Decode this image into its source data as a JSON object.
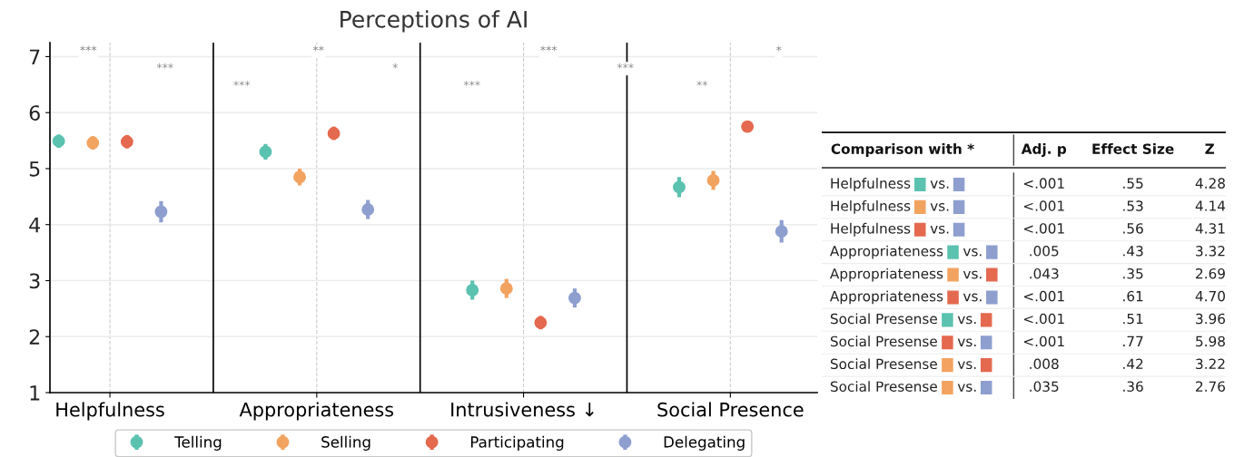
{
  "chart_data": [
    {
      "type": "scatter",
      "title": "Perceptions of AI",
      "categories": [
        "Helpfulness",
        "Appropriateness",
        "Intrusiveness ↓",
        "Social Presence"
      ],
      "series": [
        {
          "name": "Telling",
          "color": "#5bc2b0",
          "values": [
            5.49,
            5.3,
            2.83,
            4.67
          ],
          "errors": [
            0.12,
            0.14,
            0.17,
            0.18
          ]
        },
        {
          "name": "Selling",
          "color": "#f2a360",
          "values": [
            5.46,
            4.85,
            2.86,
            4.79
          ],
          "errors": [
            0.12,
            0.15,
            0.17,
            0.17
          ]
        },
        {
          "name": "Participating",
          "color": "#e4694f",
          "values": [
            5.48,
            5.63,
            2.25,
            5.75
          ],
          "errors": [
            0.12,
            0.12,
            0.12,
            0.08
          ]
        },
        {
          "name": "Delegating",
          "color": "#8e9fcf",
          "values": [
            4.23,
            4.27,
            2.69,
            3.88
          ],
          "errors": [
            0.19,
            0.17,
            0.17,
            0.2
          ]
        }
      ],
      "ylim": [
        1,
        7.25
      ],
      "yticks": [
        1,
        2,
        3,
        4,
        5,
        6,
        7
      ],
      "grid": true,
      "legend": "bottom",
      "marker": "circle",
      "annotations": [
        "***",
        "***",
        "***",
        "**",
        "*",
        "***",
        "***",
        "***",
        "**",
        "*"
      ]
    },
    {
      "type": "other",
      "categories": [
        "Comparison with *",
        "Adj. p",
        "Effect Size",
        "Z"
      ],
      "y_categories": [
        "Helpfulness",
        "Helpfulness",
        "Helpfulness",
        "Appropriateness",
        "Appropriateness",
        "Appropriateness",
        "Social Presense",
        "Social Presense",
        "Social Presense",
        "Social Presense"
      ],
      "cell_labels": [
        [
          "vs.",
          "<.001",
          ".55",
          "4.28"
        ],
        [
          "vs.",
          "<.001",
          ".53",
          "4.14"
        ],
        [
          "vs.",
          "<.001",
          ".56",
          "4.31"
        ],
        [
          "vs.",
          ".005",
          ".43",
          "3.32"
        ],
        [
          "vs.",
          ".043",
          ".35",
          "2.69"
        ],
        [
          "vs.",
          "<.001",
          ".61",
          "4.70"
        ],
        [
          "vs.",
          "<.001",
          ".51",
          "3.96"
        ],
        [
          "vs.",
          "<.001",
          ".77",
          "5.98"
        ],
        [
          "vs.",
          ".008",
          ".42",
          "3.22"
        ],
        [
          "vs.",
          ".035",
          ".36",
          "2.76"
        ]
      ],
      "colors": [
        [
          "#5bc2b0",
          "#8e9fcf"
        ],
        [
          "#f2a360",
          "#8e9fcf"
        ],
        [
          "#e4694f",
          "#8e9fcf"
        ],
        [
          "#5bc2b0",
          "#8e9fcf"
        ],
        [
          "#f2a360",
          "#e4694f"
        ],
        [
          "#e4694f",
          "#8e9fcf"
        ],
        [
          "#5bc2b0",
          "#e4694f"
        ],
        [
          "#e4694f",
          "#8e9fcf"
        ],
        [
          "#f2a360",
          "#e4694f"
        ],
        [
          "#f2a360",
          "#8e9fcf"
        ]
      ]
    }
  ]
}
